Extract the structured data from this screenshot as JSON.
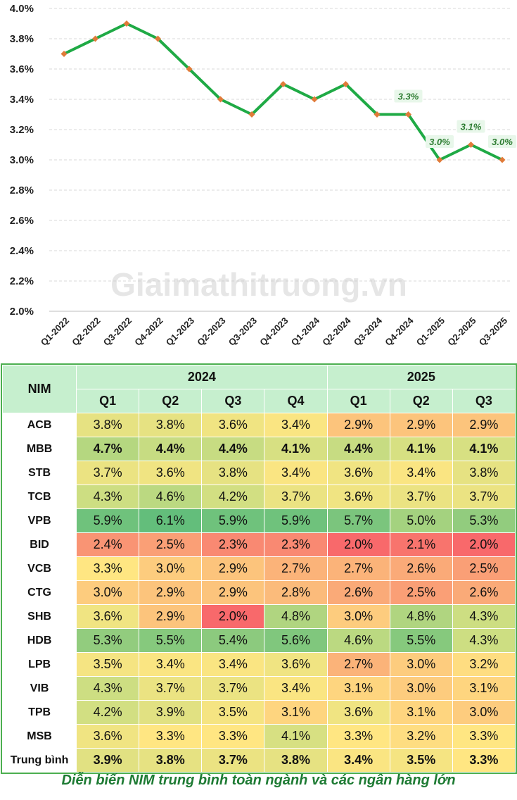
{
  "chart_data": {
    "type": "line",
    "x": [
      "Q1-2022",
      "Q2-2022",
      "Q3-2022",
      "Q4-2022",
      "Q1-2023",
      "Q2-2023",
      "Q3-2023",
      "Q4-2023",
      "Q1-2024",
      "Q2-2024",
      "Q3-2024",
      "Q4-2024",
      "Q1-2025",
      "Q2-2025",
      "Q3-2025"
    ],
    "series": [
      {
        "values": [
          3.7,
          3.8,
          3.9,
          3.8,
          3.6,
          3.4,
          3.3,
          3.5,
          3.4,
          3.5,
          3.3,
          3.3,
          3.0,
          3.1,
          3.0
        ]
      }
    ],
    "y_ticks": [
      "2.0%",
      "2.2%",
      "2.4%",
      "2.6%",
      "2.8%",
      "3.0%",
      "3.2%",
      "3.4%",
      "3.6%",
      "3.8%",
      "4.0%"
    ],
    "ylim": [
      2.0,
      4.0
    ],
    "data_labels": [
      {
        "index": 11,
        "text": "3.3%"
      },
      {
        "index": 12,
        "text": "3.0%"
      },
      {
        "index": 13,
        "text": "3.1%"
      },
      {
        "index": 14,
        "text": "3.0%"
      }
    ],
    "line_color": "#1faa45",
    "marker_color": "#e07b39",
    "grid": true,
    "watermark": "Giaimathitruong.vn"
  },
  "table": {
    "corner": "NIM",
    "years": [
      "2024",
      "2025"
    ],
    "quarters": [
      "Q1",
      "Q2",
      "Q3",
      "Q4",
      "Q1",
      "Q2",
      "Q3"
    ],
    "rows": [
      {
        "bank": "ACB",
        "values": [
          "3.8%",
          "3.8%",
          "3.6%",
          "3.4%",
          "2.9%",
          "2.9%",
          "2.9%"
        ],
        "bold": false
      },
      {
        "bank": "MBB",
        "values": [
          "4.7%",
          "4.4%",
          "4.4%",
          "4.1%",
          "4.4%",
          "4.1%",
          "4.1%"
        ],
        "bold": true
      },
      {
        "bank": "STB",
        "values": [
          "3.7%",
          "3.6%",
          "3.8%",
          "3.4%",
          "3.6%",
          "3.4%",
          "3.8%"
        ],
        "bold": false
      },
      {
        "bank": "TCB",
        "values": [
          "4.3%",
          "4.6%",
          "4.2%",
          "3.7%",
          "3.6%",
          "3.7%",
          "3.7%"
        ],
        "bold": false
      },
      {
        "bank": "VPB",
        "values": [
          "5.9%",
          "6.1%",
          "5.9%",
          "5.9%",
          "5.7%",
          "5.0%",
          "5.3%"
        ],
        "bold": false
      },
      {
        "bank": "BID",
        "values": [
          "2.4%",
          "2.5%",
          "2.3%",
          "2.3%",
          "2.0%",
          "2.1%",
          "2.0%"
        ],
        "bold": false
      },
      {
        "bank": "VCB",
        "values": [
          "3.3%",
          "3.0%",
          "2.9%",
          "2.7%",
          "2.7%",
          "2.6%",
          "2.5%"
        ],
        "bold": false
      },
      {
        "bank": "CTG",
        "values": [
          "3.0%",
          "2.9%",
          "2.9%",
          "2.8%",
          "2.6%",
          "2.5%",
          "2.6%"
        ],
        "bold": false
      },
      {
        "bank": "SHB",
        "values": [
          "3.6%",
          "2.9%",
          "2.0%",
          "4.8%",
          "3.0%",
          "4.8%",
          "4.3%"
        ],
        "bold": false
      },
      {
        "bank": "HDB",
        "values": [
          "5.3%",
          "5.5%",
          "5.4%",
          "5.6%",
          "4.6%",
          "5.5%",
          "4.3%"
        ],
        "bold": false
      },
      {
        "bank": "LPB",
        "values": [
          "3.5%",
          "3.4%",
          "3.4%",
          "3.6%",
          "2.7%",
          "3.0%",
          "3.2%"
        ],
        "bold": false
      },
      {
        "bank": "VIB",
        "values": [
          "4.3%",
          "3.7%",
          "3.7%",
          "3.4%",
          "3.1%",
          "3.0%",
          "3.1%"
        ],
        "bold": false
      },
      {
        "bank": "TPB",
        "values": [
          "4.2%",
          "3.9%",
          "3.5%",
          "3.1%",
          "3.6%",
          "3.1%",
          "3.0%"
        ],
        "bold": false
      },
      {
        "bank": "MSB",
        "values": [
          "3.6%",
          "3.3%",
          "3.3%",
          "4.1%",
          "3.3%",
          "3.2%",
          "3.3%"
        ],
        "bold": false
      },
      {
        "bank": "Trung bình",
        "values": [
          "3.9%",
          "3.8%",
          "3.7%",
          "3.8%",
          "3.4%",
          "3.5%",
          "3.3%"
        ],
        "bold": true
      }
    ]
  },
  "caption": "Diễn biến NIM trung bình toàn ngành và các ngân hàng lớn"
}
